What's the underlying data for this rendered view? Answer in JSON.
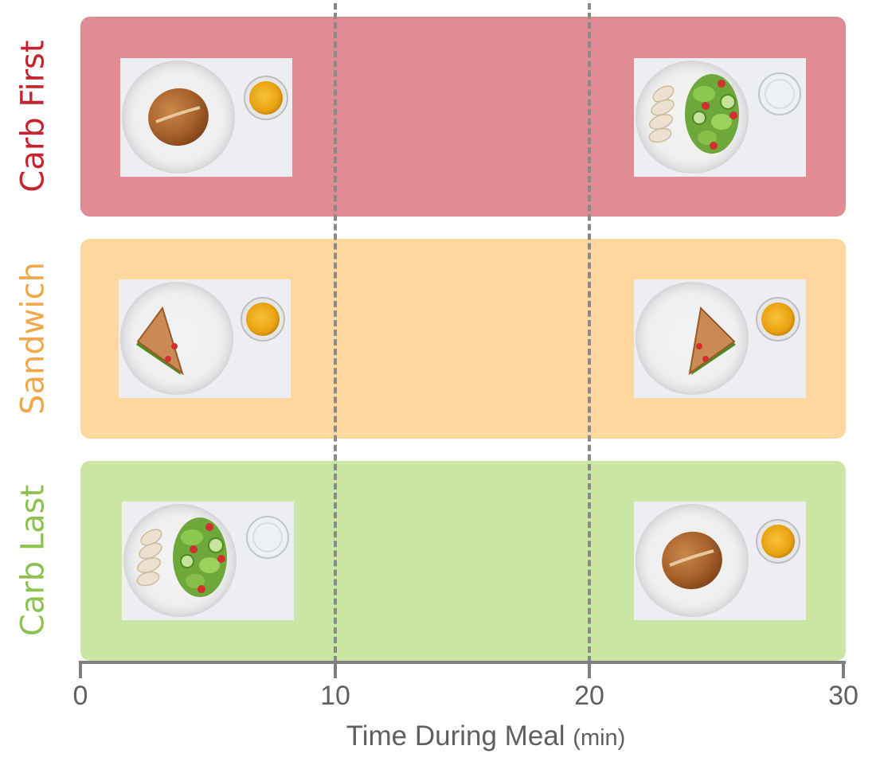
{
  "colors": {
    "carb_first_band": "#df8c93",
    "carb_first_text": "#c5222e",
    "sandwich_band": "#fed79f",
    "sandwich_text": "#f1a84b",
    "carb_last_band": "#cbe5a4",
    "carb_last_text": "#8bc34e",
    "axis": "#7f7f7f",
    "guide_line": "#8a8a8a"
  },
  "rows": [
    {
      "label": "Carb First",
      "first_course": "bread-roll-and-juice-photo",
      "second_course": "chicken-salad-and-water-photo"
    },
    {
      "label": "Sandwich",
      "first_course": "sandwich-and-juice-photo",
      "second_course": "sandwich-and-juice-photo"
    },
    {
      "label": "Carb Last",
      "first_course": "chicken-salad-and-water-photo",
      "second_course": "bread-roll-and-juice-photo"
    }
  ],
  "axis": {
    "title": "Time During Meal",
    "unit": "(min)",
    "min": 0,
    "max": 30,
    "ticks": [
      "0",
      "10",
      "20",
      "30"
    ],
    "guide_lines_at": [
      10,
      20
    ]
  }
}
